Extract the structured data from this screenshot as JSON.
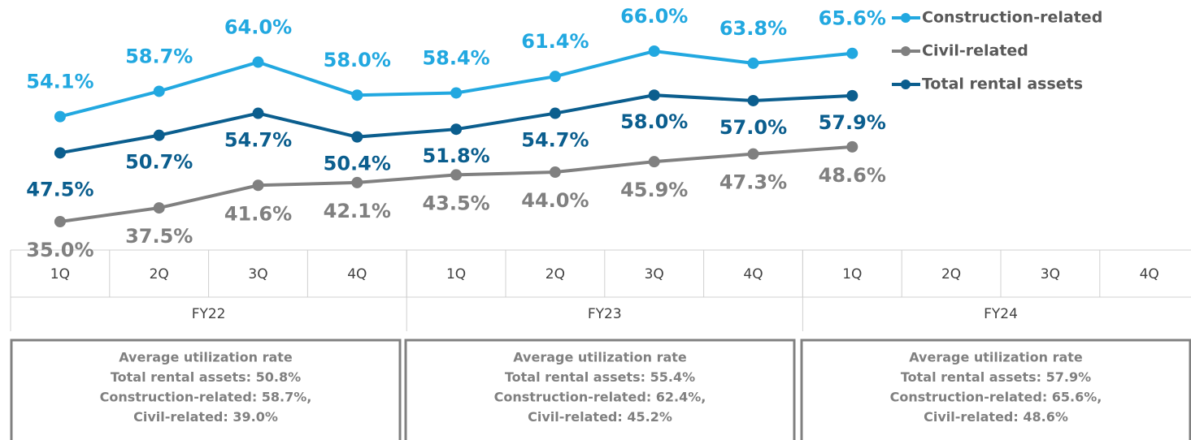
{
  "chart_data": {
    "type": "line",
    "categories": [
      "1Q",
      "2Q",
      "3Q",
      "4Q",
      "1Q",
      "2Q",
      "3Q",
      "4Q",
      "1Q",
      "2Q",
      "3Q",
      "4Q"
    ],
    "category_groups": [
      {
        "label": "FY22",
        "size": 4
      },
      {
        "label": "FY23",
        "size": 4
      },
      {
        "label": "FY24",
        "size": 4
      }
    ],
    "series": [
      {
        "name": "Construction-related",
        "color": "#22a8e0",
        "values": [
          54.1,
          58.7,
          64.0,
          58.0,
          58.4,
          61.4,
          66.0,
          63.8,
          65.6,
          null,
          null,
          null
        ],
        "value_labels": [
          "54.1%",
          "58.7%",
          "64.0%",
          "58.0%",
          "58.4%",
          "61.4%",
          "66.0%",
          "63.8%",
          "65.6%",
          null,
          null,
          null
        ]
      },
      {
        "name": "Civil-related",
        "color": "#808080",
        "values": [
          35.0,
          37.5,
          41.6,
          42.1,
          43.5,
          44.0,
          45.9,
          47.3,
          48.6,
          null,
          null,
          null
        ],
        "value_labels": [
          "35.0%",
          "37.5%",
          "41.6%",
          "42.1%",
          "43.5%",
          "44.0%",
          "45.9%",
          "47.3%",
          "48.6%",
          null,
          null,
          null
        ]
      },
      {
        "name": "Total rental assets",
        "color": "#0b5e8e",
        "values": [
          47.5,
          50.7,
          54.7,
          50.4,
          51.8,
          54.7,
          58.0,
          57.0,
          57.9,
          null,
          null,
          null
        ],
        "value_labels": [
          "47.5%",
          "50.7%",
          "54.7%",
          "50.4%",
          "51.8%",
          "54.7%",
          "58.0%",
          "57.0%",
          "57.9%",
          null,
          null,
          null
        ]
      }
    ],
    "legend": "top-right",
    "summaries": [
      [
        "Average utilization rate",
        "Total rental assets: 50.8%",
        "Construction-related: 58.7%,",
        "Civil-related: 39.0%"
      ],
      [
        "Average utilization rate",
        "Total rental assets: 55.4%",
        "Construction-related: 62.4%,",
        "Civil-related: 45.2%"
      ],
      [
        "Average utilization rate",
        "Total rental assets: 57.9%",
        "Construction-related: 65.6%,",
        "Civil-related: 48.6%"
      ]
    ]
  }
}
